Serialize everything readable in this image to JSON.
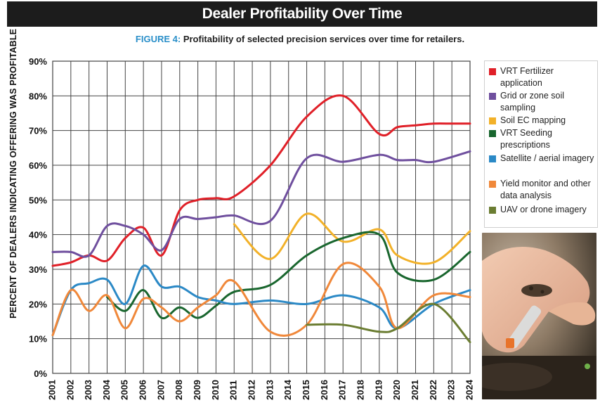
{
  "header": {
    "title": "Dealer Profitability Over Time",
    "figure_label": "FIGURE 4:",
    "figure_caption": " Profitability of selected precision services over time for retailers."
  },
  "colors": {
    "banner_bg": "#1c1c1c",
    "grid": "#333333"
  },
  "chart_data": {
    "type": "line",
    "title": "Dealer Profitability Over Time",
    "subtitle": "FIGURE 4: Profitability of selected precision services over time for retailers.",
    "xlabel": "",
    "ylabel": "PERCENT OF DEALERS INDICATING OFFERING WAS PROFITABLE",
    "ylim": [
      0,
      90
    ],
    "yticks": [
      "0%",
      "10%",
      "20%",
      "30%",
      "40%",
      "50%",
      "60%",
      "70%",
      "80%",
      "90%"
    ],
    "grid": true,
    "legend_position": "right",
    "categories": [
      "2001",
      "2002",
      "2003",
      "2004",
      "2005",
      "2006",
      "2007",
      "2008",
      "2009",
      "2010",
      "2011",
      "2012",
      "2013",
      "2014",
      "2015",
      "2016",
      "2017",
      "2018",
      "2019",
      "2020",
      "2021",
      "2022",
      "2023",
      "2024"
    ],
    "series": [
      {
        "name": "VRT Fertilizer application",
        "color": "#e02028",
        "values": [
          31,
          32,
          34,
          32.5,
          39,
          42,
          34,
          47,
          50,
          50.5,
          51,
          null,
          60,
          null,
          74,
          null,
          80,
          null,
          69,
          71,
          71.5,
          72,
          72,
          72
        ]
      },
      {
        "name": "Grid or zone soil sampling",
        "color": "#6f4f9e",
        "values": [
          35,
          35,
          34,
          42.5,
          42.5,
          40,
          35.5,
          44.5,
          44.5,
          45,
          45.5,
          null,
          44,
          null,
          62,
          null,
          61,
          null,
          63,
          61.5,
          61.5,
          61,
          null,
          64
        ]
      },
      {
        "name": "Soil EC mapping",
        "color": "#f2b129",
        "values": [
          null,
          null,
          null,
          null,
          null,
          null,
          null,
          null,
          null,
          null,
          43,
          null,
          33,
          null,
          46,
          null,
          38,
          null,
          41.5,
          34,
          null,
          32,
          null,
          41
        ]
      },
      {
        "name": "VRT Seeding prescriptions",
        "color": "#19662e",
        "values": [
          null,
          null,
          null,
          22,
          18,
          24,
          16,
          19,
          16,
          19.5,
          23.5,
          null,
          25.5,
          null,
          34,
          null,
          39,
          null,
          40,
          29,
          null,
          27,
          null,
          35
        ]
      },
      {
        "name": "Satellite / aerial imagery",
        "color": "#2b89c6",
        "values": [
          11,
          24,
          26,
          27,
          20,
          31,
          25,
          25,
          22,
          21,
          20,
          null,
          21,
          null,
          20,
          null,
          22.5,
          null,
          19,
          13,
          null,
          20,
          null,
          24
        ]
      },
      {
        "name": "Yield monitor and other data analysis",
        "color": "#f0883a",
        "values": [
          11,
          24,
          18,
          22.5,
          13,
          21.5,
          19,
          15,
          19,
          22.5,
          26.5,
          null,
          12,
          null,
          14,
          null,
          31.5,
          null,
          25,
          13,
          null,
          22.5,
          null,
          22
        ]
      },
      {
        "name": "UAV or drone imagery",
        "color": "#6b7d32",
        "values": [
          null,
          null,
          null,
          null,
          null,
          null,
          null,
          null,
          null,
          null,
          null,
          null,
          null,
          null,
          14,
          null,
          14,
          null,
          12,
          13,
          null,
          20,
          null,
          9
        ]
      }
    ]
  },
  "legend": {
    "items": [
      {
        "text": "VRT Fertilizer application",
        "color": "#e02028"
      },
      {
        "text": "Grid or zone soil sampling",
        "color": "#6f4f9e"
      },
      {
        "text": "Soil EC mapping",
        "color": "#f2b129"
      },
      {
        "text": "VRT Seeding prescriptions",
        "color": "#19662e"
      },
      {
        "text": "Satellite / aerial imagery",
        "color": "#2b89c6"
      },
      {
        "text": "Yield monitor and other data analysis",
        "color": "#f0883a"
      },
      {
        "text": "UAV or drone imagery",
        "color": "#6b7d32"
      }
    ]
  },
  "photo": {
    "icon": "hand-holding-soil-sample-vial-photo"
  }
}
